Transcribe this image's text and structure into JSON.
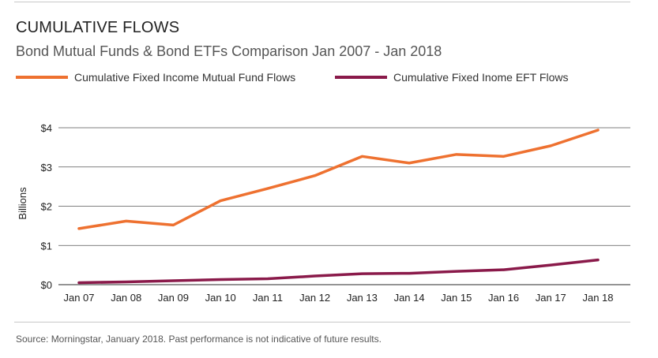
{
  "header": {
    "title": "CUMULATIVE FLOWS",
    "subtitle": "Bond Mutual Funds & Bond ETFs Comparison Jan 2007 - Jan 2018"
  },
  "footer": {
    "source": "Source: Morningstar, January 2018. Past performance is not indicative of future results."
  },
  "colors": {
    "mutual_fund": "#ee7130",
    "etf": "#8a1a4a",
    "grid": "#555555"
  },
  "chart_data": {
    "type": "line",
    "title": "CUMULATIVE FLOWS",
    "subtitle": "Bond Mutual Funds & Bond ETFs Comparison Jan 2007 - Jan 2018",
    "xlabel": "",
    "ylabel": "Billions",
    "categories": [
      "Jan 07",
      "Jan 08",
      "Jan 09",
      "Jan 10",
      "Jan 11",
      "Jan 12",
      "Jan 13",
      "Jan 14",
      "Jan 15",
      "Jan 16",
      "Jan 17",
      "Jan 18"
    ],
    "ylim": [
      0,
      4
    ],
    "yticks": [
      0,
      1,
      2,
      3,
      4
    ],
    "ytick_labels": [
      "$0",
      "$1",
      "$2",
      "$3",
      "$4"
    ],
    "grid": "horizontal",
    "legend_position": "top",
    "series": [
      {
        "name": "Cumulative Fixed Income Mutual Fund Flows",
        "color": "#ee7130",
        "values": [
          1.43,
          1.62,
          1.52,
          2.14,
          2.45,
          2.78,
          3.27,
          3.1,
          3.32,
          3.27,
          3.54,
          3.94
        ]
      },
      {
        "name": "Cumulative Fixed Inome EFT Flows",
        "color": "#8a1a4a",
        "values": [
          0.05,
          0.07,
          0.1,
          0.13,
          0.15,
          0.22,
          0.28,
          0.29,
          0.34,
          0.38,
          0.5,
          0.63
        ]
      }
    ]
  }
}
